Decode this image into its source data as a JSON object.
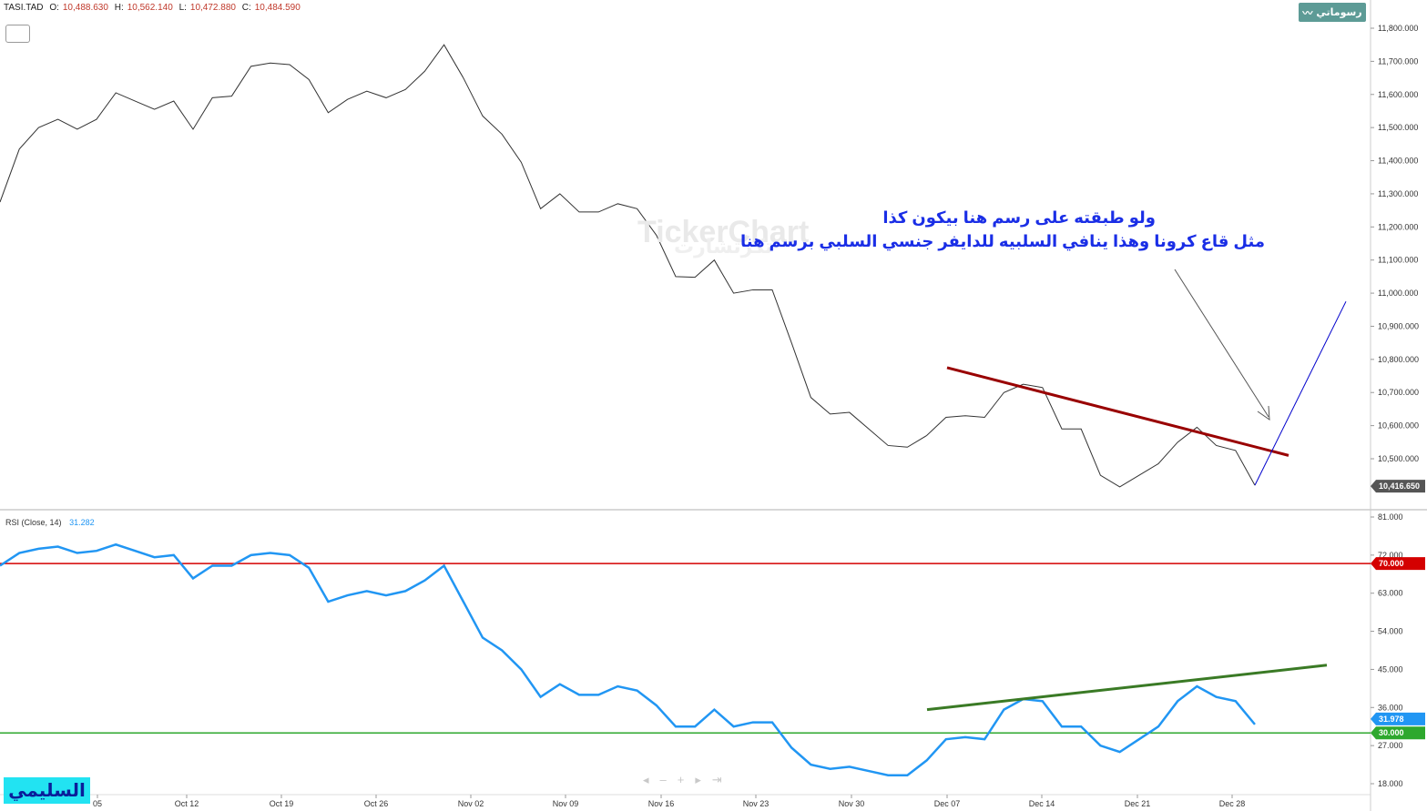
{
  "header": {
    "symbol": "TASI.TAD",
    "open_label": "O:",
    "open": "10,488.630",
    "high_label": "H:",
    "high": "10,562.140",
    "low_label": "L:",
    "low": "10,472.880",
    "close_label": "C:",
    "close": "10,484.590",
    "drawings_button": "رسوماتي"
  },
  "watermark": {
    "brand": "TickerChart",
    "brand_ar": "تكرتشارت"
  },
  "annotations": {
    "line1": "ولو طبقته على رسم هنا بيكون كذا",
    "line2": "مثل قاع كرونا وهذا ينافي السلبيه للدايفر جنسي السلبي  برسم هنا"
  },
  "author_badge": "السليمي",
  "colors": {
    "price_line": "#333333",
    "rsi_line": "#2196f3",
    "overbought_line": "#d40000",
    "oversold_line": "#2ea82e",
    "price_trendline": "#990000",
    "rsi_trendline": "#3a7a25",
    "projection_line": "#0000cc",
    "arrow": "#555555",
    "last_price_tag": "#555555",
    "author_bg": "#22e3f2"
  },
  "rsi_panel": {
    "legend": "RSI",
    "params": "(Close, 14)",
    "value": "31.282",
    "tag_last": "31.978",
    "tag_overbought": "70.000",
    "tag_oversold": "30.000"
  },
  "last_price_tag": "10,416.650",
  "nav_controls": [
    "◂",
    "–",
    "+",
    "▸",
    "⇥"
  ],
  "chart_data": [
    {
      "type": "line",
      "title": "",
      "x_tick_labels": [
        "05",
        "Oct 12",
        "Oct 19",
        "Oct 26",
        "Nov 02",
        "Nov 09",
        "Nov 16",
        "Nov 23",
        "Nov 30",
        "Dec 07",
        "Dec 14",
        "Dec 21",
        "Dec 28"
      ],
      "y_tick_labels": [
        "11,800.000",
        "11,700.000",
        "11,600.000",
        "11,500.000",
        "11,400.000",
        "11,300.000",
        "11,200.000",
        "11,100.000",
        "11,000.000",
        "10,900.000",
        "10,800.000",
        "10,700.000",
        "10,600.000",
        "10,500.000"
      ],
      "ylim": [
        10400,
        11850
      ],
      "series": [
        {
          "values": [
            11275,
            11435,
            11500,
            11525,
            11495,
            11525,
            11605,
            11580,
            11555,
            11580,
            11495,
            11590,
            11595,
            11685,
            11695,
            11690,
            11645,
            11545,
            11585,
            11610,
            11590,
            11615,
            11670,
            11750,
            11650,
            11535,
            11480,
            11395,
            11255,
            11300,
            11245,
            11245,
            11270,
            11255,
            11175,
            11050,
            11048,
            11100,
            11000,
            11010,
            11010,
            10850,
            10685,
            10635,
            10640,
            10590,
            10540,
            10535,
            10570,
            10625,
            10630,
            10625,
            10700,
            10725,
            10715,
            10590,
            10590,
            10450,
            10415,
            10450,
            10485,
            10550,
            10595,
            10540,
            10525,
            10420
          ]
        }
      ],
      "trendline_points": [
        [
          10775,
          10510
        ]
      ],
      "projection_target": 10975
    },
    {
      "type": "line",
      "title": "RSI (Close, 14)",
      "y_tick_labels": [
        "81.000",
        "72.000",
        "63.000",
        "54.000",
        "45.000",
        "36.000",
        "27.000",
        "18.000"
      ],
      "ylim": [
        17,
        82
      ],
      "reference_lines": [
        70,
        30
      ],
      "series": [
        {
          "name": "RSI",
          "values": [
            69.5,
            72.5,
            73.5,
            74,
            72.5,
            73,
            74.5,
            73,
            71.5,
            72,
            66.5,
            69.5,
            69.5,
            72,
            72.5,
            72,
            69,
            61,
            62.5,
            63.5,
            62.5,
            63.5,
            66,
            69.5,
            61,
            52.5,
            49.5,
            45,
            38.5,
            41.5,
            39,
            39,
            41,
            40,
            36.5,
            31.5,
            31.5,
            35.5,
            31.5,
            32.5,
            32.5,
            26.5,
            22.5,
            21.5,
            22,
            21,
            20,
            20,
            23.5,
            28.5,
            29,
            28.5,
            35.5,
            38,
            37.5,
            31.5,
            31.5,
            27,
            25.5,
            28.5,
            31.5,
            37.5,
            41,
            38.5,
            37.5,
            32
          ]
        }
      ],
      "trendline_points": [
        [
          35.5,
          46
        ]
      ]
    }
  ]
}
